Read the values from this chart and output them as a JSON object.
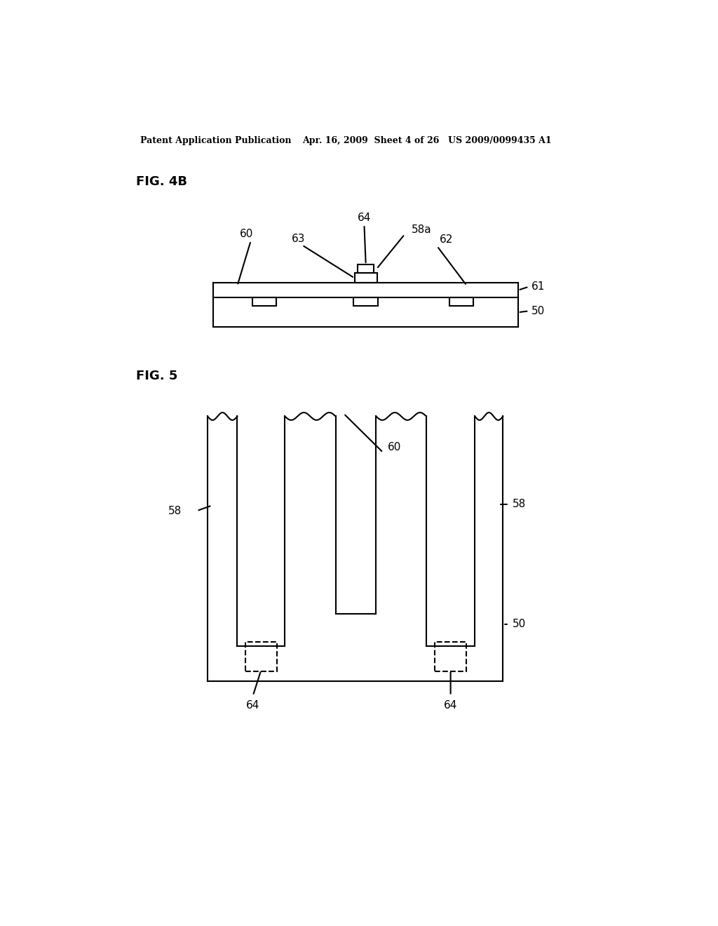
{
  "bg_color": "#ffffff",
  "header_left": "Patent Application Publication",
  "header_mid": "Apr. 16, 2009  Sheet 4 of 26",
  "header_right": "US 2009/0099435 A1",
  "fig4b_label": "FIG. 4B",
  "fig5_label": "FIG. 5",
  "line_color": "#000000",
  "line_width": 1.5
}
